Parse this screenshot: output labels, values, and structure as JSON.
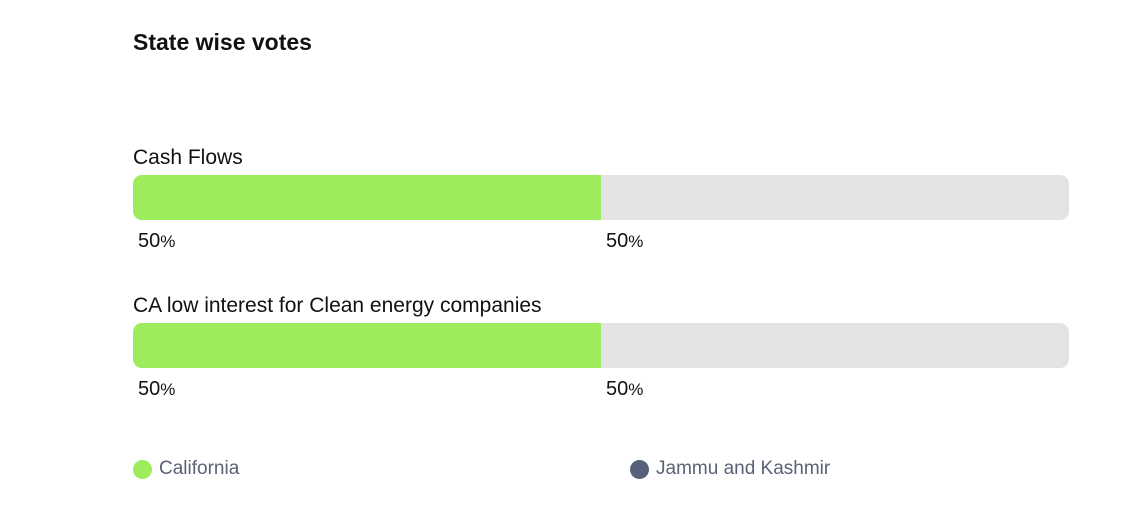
{
  "chart_data": {
    "type": "bar",
    "orientation": "horizontal",
    "stacked": true,
    "normalized_percent": true,
    "title": "State wise votes",
    "categories": [
      "Cash Flows",
      "CA low interest for Clean energy companies"
    ],
    "series": [
      {
        "name": "California",
        "color": "#9cec5b",
        "values": [
          50,
          50
        ]
      },
      {
        "name": "Jammu and Kashmir",
        "color": "#e3e3e3",
        "legend_color": "#56607a",
        "values": [
          50,
          50
        ]
      }
    ],
    "value_suffix": "%",
    "xlim": [
      0,
      100
    ],
    "grid": false,
    "legend_position": "bottom"
  }
}
